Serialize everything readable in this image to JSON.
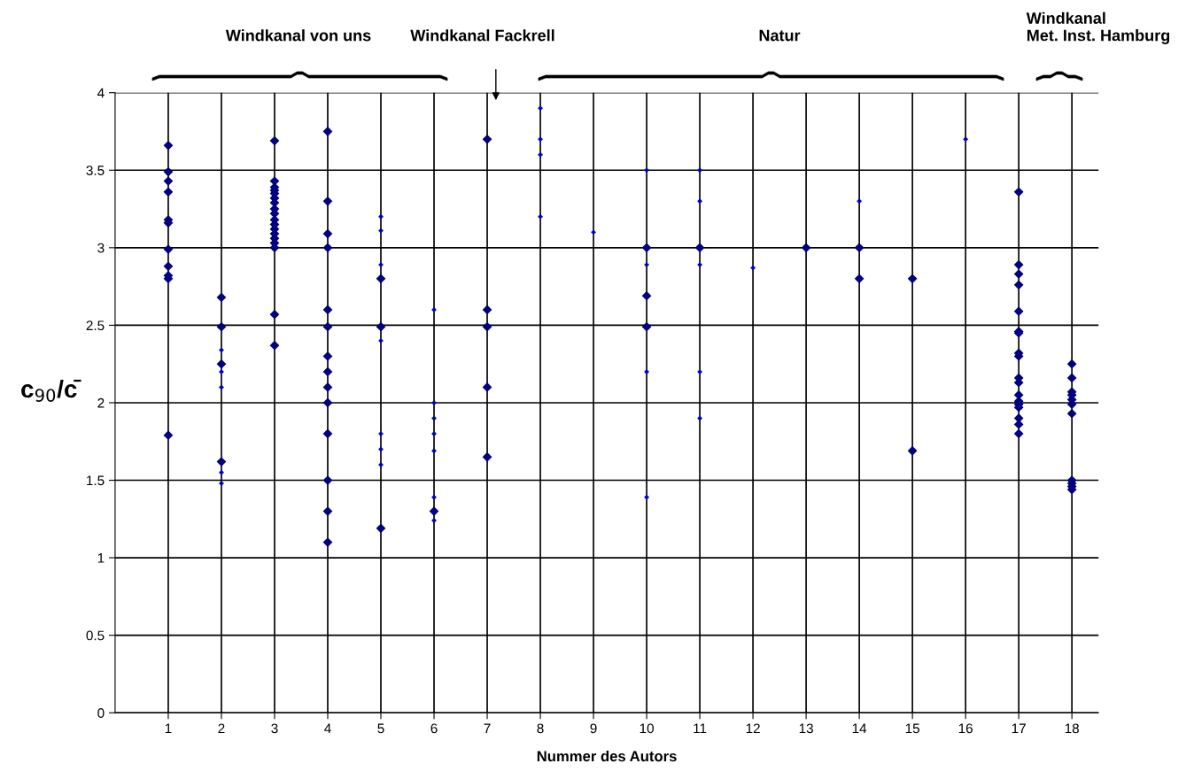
{
  "chart_data": {
    "type": "scatter",
    "xlabel": "Nummer des Autors",
    "ylabel": "c$_{90}$/c̄",
    "xlim": [
      0,
      18.5
    ],
    "xticks": [
      1,
      2,
      3,
      4,
      5,
      6,
      7,
      8,
      9,
      10,
      11,
      12,
      13,
      14,
      15,
      16,
      17,
      18
    ],
    "ylim": [
      0,
      4
    ],
    "yticks": [
      0,
      0.5,
      1,
      1.5,
      2,
      2.5,
      3,
      3.5,
      4
    ],
    "grid": true,
    "annotations": [
      "Windkanal von uns",
      "Windkanal Fackrell",
      "Natur",
      "Windkanal\nMet. Inst. Hamburg"
    ],
    "series": [
      {
        "color": "#000080",
        "marker": "diamond",
        "x": [
          1,
          1,
          1,
          1,
          1,
          1,
          1,
          1,
          1,
          1,
          1,
          2,
          2,
          2,
          2,
          3,
          3,
          3,
          3,
          3,
          3,
          3,
          3,
          3,
          3,
          3,
          3,
          3,
          3,
          3,
          3,
          3,
          3,
          4,
          4,
          4,
          4,
          4,
          4,
          4,
          4,
          4,
          4,
          4,
          4,
          4,
          4,
          5,
          5,
          5,
          6,
          7,
          7,
          7,
          7,
          7,
          10,
          10,
          10,
          11,
          13,
          14,
          14,
          15,
          15,
          17,
          17,
          17,
          17,
          17,
          17,
          17,
          17,
          17,
          17,
          17,
          17,
          17,
          17,
          17,
          17,
          17,
          17,
          18,
          18,
          18,
          18,
          18,
          18,
          18,
          18,
          18,
          18,
          18
        ],
        "values": [
          3.66,
          3.49,
          3.43,
          3.36,
          3.18,
          3.16,
          2.99,
          2.88,
          2.82,
          2.8,
          1.79,
          2.68,
          2.49,
          2.25,
          1.62,
          3.69,
          3.43,
          3.39,
          3.37,
          3.35,
          3.32,
          3.29,
          3.25,
          3.22,
          3.18,
          3.15,
          3.12,
          3.09,
          3.06,
          3.03,
          3.0,
          2.57,
          2.37,
          3.75,
          3.3,
          3.09,
          3.0,
          2.6,
          2.49,
          2.3,
          2.2,
          2.1,
          2.0,
          1.8,
          1.5,
          1.3,
          1.1,
          2.8,
          2.49,
          1.19,
          1.3,
          3.7,
          2.6,
          2.49,
          2.1,
          1.65,
          3.0,
          2.69,
          2.49,
          3.0,
          3.0,
          3.0,
          2.8,
          2.8,
          1.69,
          3.36,
          2.89,
          2.83,
          2.76,
          2.59,
          2.46,
          2.45,
          2.32,
          2.3,
          2.16,
          2.13,
          2.05,
          2.01,
          1.99,
          1.97,
          1.9,
          1.86,
          1.8,
          2.25,
          2.16,
          2.07,
          2.05,
          2.02,
          1.99,
          1.93,
          1.5,
          1.48,
          1.46,
          1.44
        ]
      },
      {
        "color": "#0000cc",
        "marker": "diamond",
        "x": [
          2,
          2,
          2,
          2,
          2,
          5,
          5,
          5,
          5,
          5,
          5,
          5,
          6,
          6,
          6,
          6,
          6,
          6,
          6,
          8,
          8,
          8,
          8,
          9,
          10,
          10,
          10,
          10,
          11,
          11,
          11,
          11,
          11,
          12,
          14,
          16
        ],
        "values": [
          2.34,
          2.2,
          2.1,
          1.55,
          1.48,
          3.2,
          3.11,
          2.89,
          2.4,
          1.8,
          1.7,
          1.6,
          2.6,
          2.0,
          1.9,
          1.8,
          1.69,
          1.39,
          1.24,
          3.9,
          3.7,
          3.6,
          3.2,
          3.1,
          3.5,
          2.89,
          2.2,
          1.39,
          3.5,
          3.3,
          2.89,
          2.2,
          1.9,
          2.87,
          3.3,
          3.7
        ]
      }
    ]
  }
}
